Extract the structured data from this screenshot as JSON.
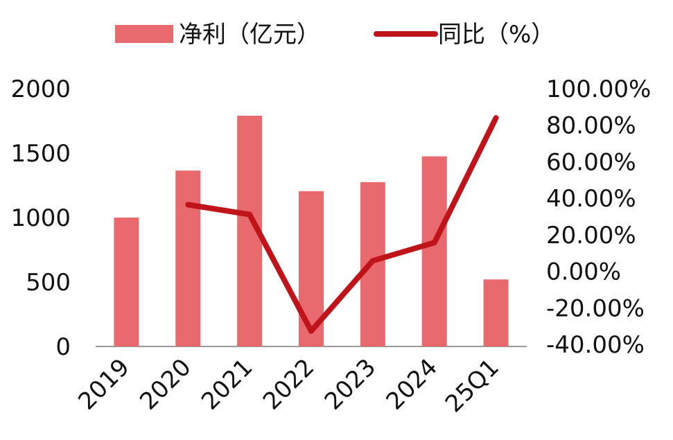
{
  "chart_data": {
    "type": "bar",
    "categories": [
      "2019",
      "2020",
      "2021",
      "2022",
      "2023",
      "2024",
      "25Q1"
    ],
    "series": [
      {
        "name": "净利（亿元）",
        "type": "bar",
        "axis": "left",
        "color": "#e96a6e",
        "values": [
          1000,
          1365,
          1790,
          1205,
          1275,
          1475,
          520
        ]
      },
      {
        "name": "同比（%）",
        "type": "line",
        "axis": "right",
        "color": "#c0141b",
        "values": [
          null,
          36.5,
          31.1,
          -32.7,
          5.8,
          15.7,
          84.0
        ]
      }
    ],
    "y_left": {
      "ylim": [
        0,
        2000
      ],
      "ticks": [
        "0",
        "500",
        "1000",
        "1500",
        "2000"
      ],
      "tick_values": [
        0,
        500,
        1000,
        1500,
        2000
      ]
    },
    "y_right": {
      "ylim": [
        -40,
        100
      ],
      "ticks": [
        "-40.00%",
        "-20.00%",
        "0.00%",
        "20.00%",
        "40.00%",
        "60.00%",
        "80.00%",
        "100.00%"
      ],
      "tick_values": [
        -40,
        -20,
        0,
        20,
        40,
        60,
        80,
        100
      ]
    },
    "legend": {
      "placement": "top-center"
    },
    "grid": false
  }
}
